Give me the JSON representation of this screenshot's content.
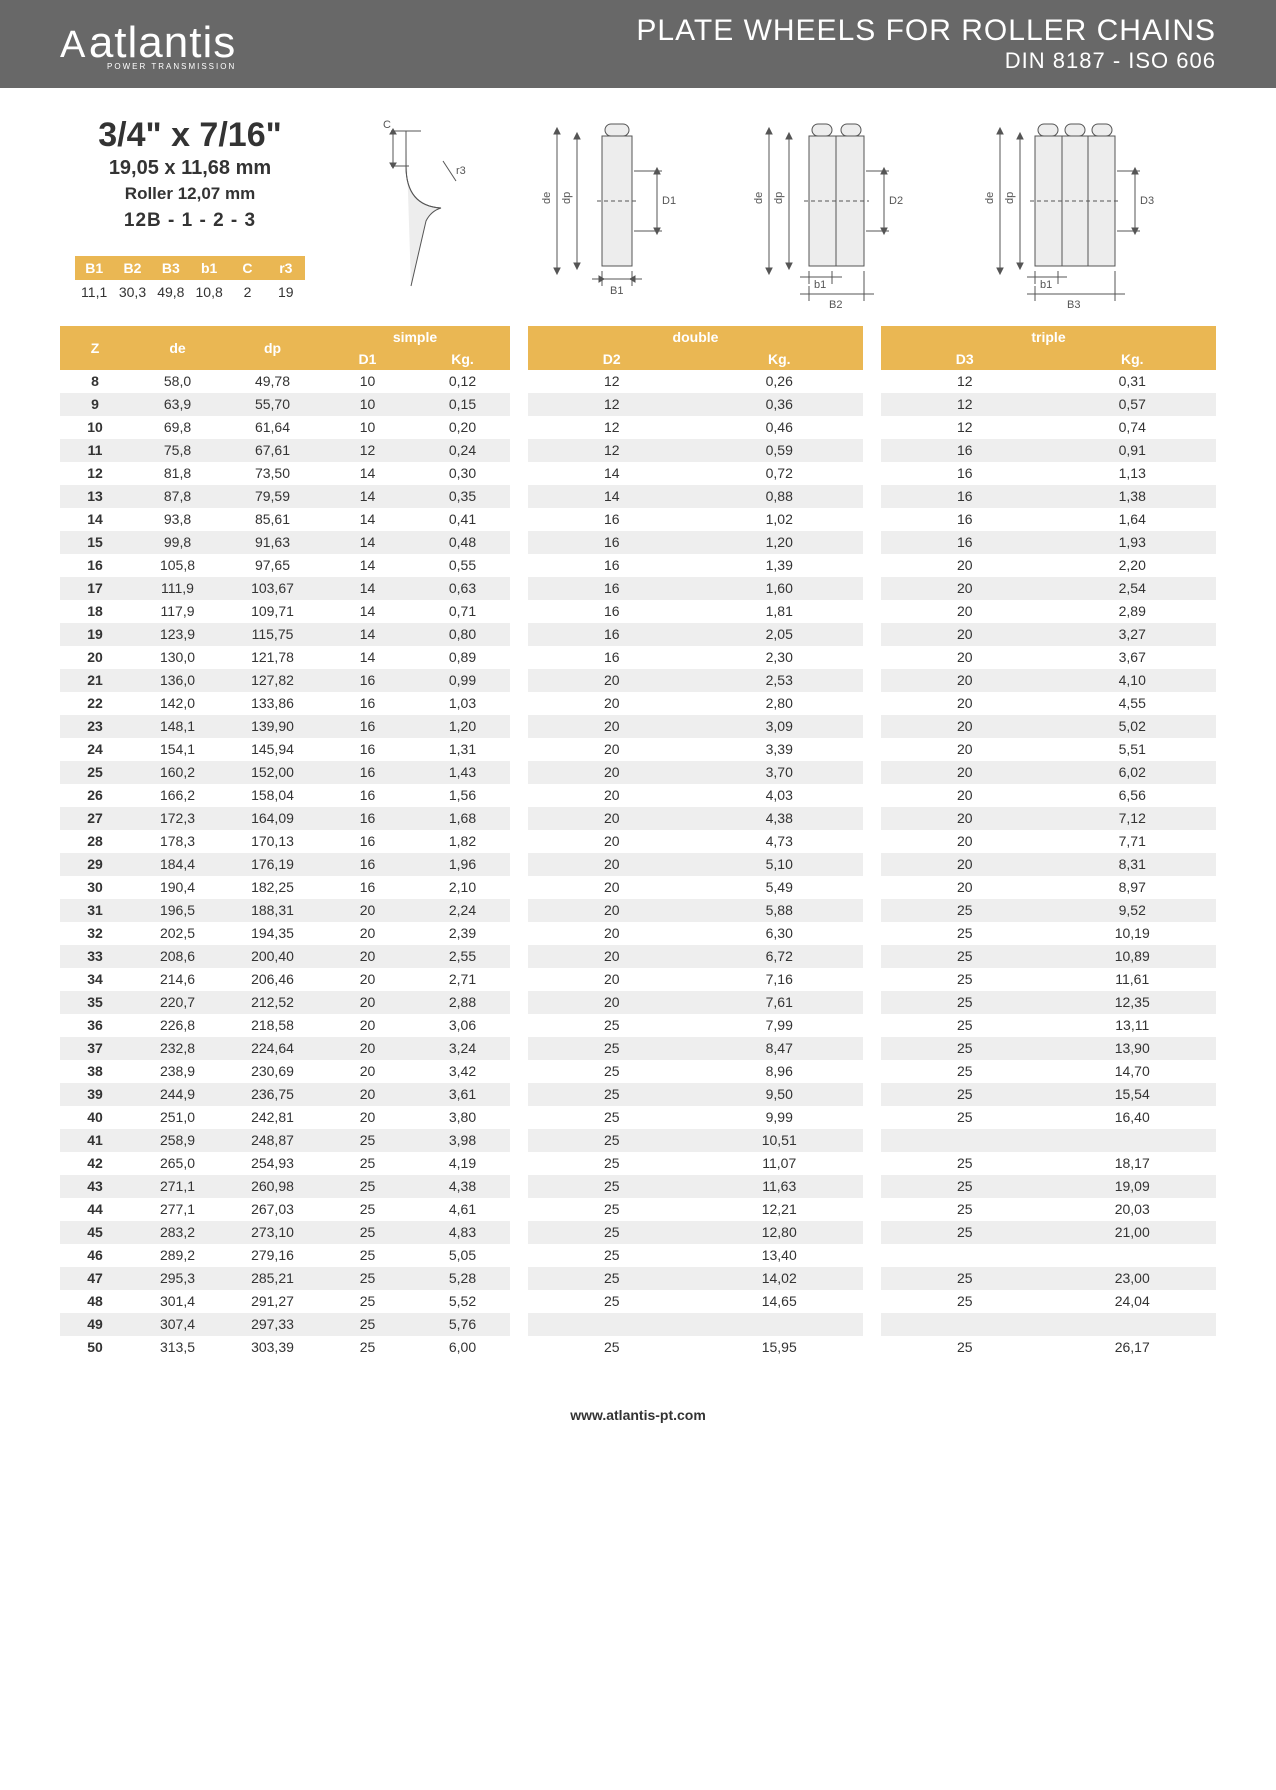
{
  "header": {
    "logo_mark": "A",
    "logo_name": "atlantis",
    "logo_sub": "POWER TRANSMISSION",
    "title_line1": "PLATE WHEELS FOR ROLLER CHAINS",
    "title_line2": "DIN 8187 - ISO 606"
  },
  "spec": {
    "size_inch": "3/4\" x 7/16\"",
    "size_mm": "19,05 x 11,68 mm",
    "roller": "Roller 12,07 mm",
    "code": "12B - 1 - 2 - 3"
  },
  "small_table": {
    "headers": [
      "B1",
      "B2",
      "B3",
      "b1",
      "C",
      "r3"
    ],
    "values": [
      "11,1",
      "30,3",
      "49,8",
      "10,8",
      "2",
      "19"
    ]
  },
  "diagram_labels": {
    "c": "C",
    "r3": "r3",
    "de": "de",
    "dp": "dp",
    "D1": "D1",
    "D2": "D2",
    "D3": "D3",
    "B1": "B1",
    "b1": "b1",
    "B2": "B2",
    "B3": "B3"
  },
  "table_head": {
    "z": "Z",
    "de": "de",
    "dp": "dp",
    "simple": "simple",
    "double": "double",
    "triple": "triple",
    "D1": "D1",
    "D2": "D2",
    "D3": "D3",
    "kg": "Kg."
  },
  "rows": [
    {
      "z": "8",
      "de": "58,0",
      "dp": "49,78",
      "d1": "10",
      "kg1": "0,12",
      "d2": "12",
      "kg2": "0,26",
      "d3": "12",
      "kg3": "0,31"
    },
    {
      "z": "9",
      "de": "63,9",
      "dp": "55,70",
      "d1": "10",
      "kg1": "0,15",
      "d2": "12",
      "kg2": "0,36",
      "d3": "12",
      "kg3": "0,57"
    },
    {
      "z": "10",
      "de": "69,8",
      "dp": "61,64",
      "d1": "10",
      "kg1": "0,20",
      "d2": "12",
      "kg2": "0,46",
      "d3": "12",
      "kg3": "0,74"
    },
    {
      "z": "11",
      "de": "75,8",
      "dp": "67,61",
      "d1": "12",
      "kg1": "0,24",
      "d2": "12",
      "kg2": "0,59",
      "d3": "16",
      "kg3": "0,91"
    },
    {
      "z": "12",
      "de": "81,8",
      "dp": "73,50",
      "d1": "14",
      "kg1": "0,30",
      "d2": "14",
      "kg2": "0,72",
      "d3": "16",
      "kg3": "1,13"
    },
    {
      "z": "13",
      "de": "87,8",
      "dp": "79,59",
      "d1": "14",
      "kg1": "0,35",
      "d2": "14",
      "kg2": "0,88",
      "d3": "16",
      "kg3": "1,38"
    },
    {
      "z": "14",
      "de": "93,8",
      "dp": "85,61",
      "d1": "14",
      "kg1": "0,41",
      "d2": "16",
      "kg2": "1,02",
      "d3": "16",
      "kg3": "1,64"
    },
    {
      "z": "15",
      "de": "99,8",
      "dp": "91,63",
      "d1": "14",
      "kg1": "0,48",
      "d2": "16",
      "kg2": "1,20",
      "d3": "16",
      "kg3": "1,93"
    },
    {
      "z": "16",
      "de": "105,8",
      "dp": "97,65",
      "d1": "14",
      "kg1": "0,55",
      "d2": "16",
      "kg2": "1,39",
      "d3": "20",
      "kg3": "2,20"
    },
    {
      "z": "17",
      "de": "111,9",
      "dp": "103,67",
      "d1": "14",
      "kg1": "0,63",
      "d2": "16",
      "kg2": "1,60",
      "d3": "20",
      "kg3": "2,54"
    },
    {
      "z": "18",
      "de": "117,9",
      "dp": "109,71",
      "d1": "14",
      "kg1": "0,71",
      "d2": "16",
      "kg2": "1,81",
      "d3": "20",
      "kg3": "2,89"
    },
    {
      "z": "19",
      "de": "123,9",
      "dp": "115,75",
      "d1": "14",
      "kg1": "0,80",
      "d2": "16",
      "kg2": "2,05",
      "d3": "20",
      "kg3": "3,27"
    },
    {
      "z": "20",
      "de": "130,0",
      "dp": "121,78",
      "d1": "14",
      "kg1": "0,89",
      "d2": "16",
      "kg2": "2,30",
      "d3": "20",
      "kg3": "3,67"
    },
    {
      "z": "21",
      "de": "136,0",
      "dp": "127,82",
      "d1": "16",
      "kg1": "0,99",
      "d2": "20",
      "kg2": "2,53",
      "d3": "20",
      "kg3": "4,10"
    },
    {
      "z": "22",
      "de": "142,0",
      "dp": "133,86",
      "d1": "16",
      "kg1": "1,03",
      "d2": "20",
      "kg2": "2,80",
      "d3": "20",
      "kg3": "4,55"
    },
    {
      "z": "23",
      "de": "148,1",
      "dp": "139,90",
      "d1": "16",
      "kg1": "1,20",
      "d2": "20",
      "kg2": "3,09",
      "d3": "20",
      "kg3": "5,02"
    },
    {
      "z": "24",
      "de": "154,1",
      "dp": "145,94",
      "d1": "16",
      "kg1": "1,31",
      "d2": "20",
      "kg2": "3,39",
      "d3": "20",
      "kg3": "5,51"
    },
    {
      "z": "25",
      "de": "160,2",
      "dp": "152,00",
      "d1": "16",
      "kg1": "1,43",
      "d2": "20",
      "kg2": "3,70",
      "d3": "20",
      "kg3": "6,02"
    },
    {
      "z": "26",
      "de": "166,2",
      "dp": "158,04",
      "d1": "16",
      "kg1": "1,56",
      "d2": "20",
      "kg2": "4,03",
      "d3": "20",
      "kg3": "6,56"
    },
    {
      "z": "27",
      "de": "172,3",
      "dp": "164,09",
      "d1": "16",
      "kg1": "1,68",
      "d2": "20",
      "kg2": "4,38",
      "d3": "20",
      "kg3": "7,12"
    },
    {
      "z": "28",
      "de": "178,3",
      "dp": "170,13",
      "d1": "16",
      "kg1": "1,82",
      "d2": "20",
      "kg2": "4,73",
      "d3": "20",
      "kg3": "7,71"
    },
    {
      "z": "29",
      "de": "184,4",
      "dp": "176,19",
      "d1": "16",
      "kg1": "1,96",
      "d2": "20",
      "kg2": "5,10",
      "d3": "20",
      "kg3": "8,31"
    },
    {
      "z": "30",
      "de": "190,4",
      "dp": "182,25",
      "d1": "16",
      "kg1": "2,10",
      "d2": "20",
      "kg2": "5,49",
      "d3": "20",
      "kg3": "8,97"
    },
    {
      "z": "31",
      "de": "196,5",
      "dp": "188,31",
      "d1": "20",
      "kg1": "2,24",
      "d2": "20",
      "kg2": "5,88",
      "d3": "25",
      "kg3": "9,52"
    },
    {
      "z": "32",
      "de": "202,5",
      "dp": "194,35",
      "d1": "20",
      "kg1": "2,39",
      "d2": "20",
      "kg2": "6,30",
      "d3": "25",
      "kg3": "10,19"
    },
    {
      "z": "33",
      "de": "208,6",
      "dp": "200,40",
      "d1": "20",
      "kg1": "2,55",
      "d2": "20",
      "kg2": "6,72",
      "d3": "25",
      "kg3": "10,89"
    },
    {
      "z": "34",
      "de": "214,6",
      "dp": "206,46",
      "d1": "20",
      "kg1": "2,71",
      "d2": "20",
      "kg2": "7,16",
      "d3": "25",
      "kg3": "11,61"
    },
    {
      "z": "35",
      "de": "220,7",
      "dp": "212,52",
      "d1": "20",
      "kg1": "2,88",
      "d2": "20",
      "kg2": "7,61",
      "d3": "25",
      "kg3": "12,35"
    },
    {
      "z": "36",
      "de": "226,8",
      "dp": "218,58",
      "d1": "20",
      "kg1": "3,06",
      "d2": "25",
      "kg2": "7,99",
      "d3": "25",
      "kg3": "13,11"
    },
    {
      "z": "37",
      "de": "232,8",
      "dp": "224,64",
      "d1": "20",
      "kg1": "3,24",
      "d2": "25",
      "kg2": "8,47",
      "d3": "25",
      "kg3": "13,90"
    },
    {
      "z": "38",
      "de": "238,9",
      "dp": "230,69",
      "d1": "20",
      "kg1": "3,42",
      "d2": "25",
      "kg2": "8,96",
      "d3": "25",
      "kg3": "14,70"
    },
    {
      "z": "39",
      "de": "244,9",
      "dp": "236,75",
      "d1": "20",
      "kg1": "3,61",
      "d2": "25",
      "kg2": "9,50",
      "d3": "25",
      "kg3": "15,54"
    },
    {
      "z": "40",
      "de": "251,0",
      "dp": "242,81",
      "d1": "20",
      "kg1": "3,80",
      "d2": "25",
      "kg2": "9,99",
      "d3": "25",
      "kg3": "16,40"
    },
    {
      "z": "41",
      "de": "258,9",
      "dp": "248,87",
      "d1": "25",
      "kg1": "3,98",
      "d2": "25",
      "kg2": "10,51",
      "d3": "",
      "kg3": ""
    },
    {
      "z": "42",
      "de": "265,0",
      "dp": "254,93",
      "d1": "25",
      "kg1": "4,19",
      "d2": "25",
      "kg2": "11,07",
      "d3": "25",
      "kg3": "18,17"
    },
    {
      "z": "43",
      "de": "271,1",
      "dp": "260,98",
      "d1": "25",
      "kg1": "4,38",
      "d2": "25",
      "kg2": "11,63",
      "d3": "25",
      "kg3": "19,09"
    },
    {
      "z": "44",
      "de": "277,1",
      "dp": "267,03",
      "d1": "25",
      "kg1": "4,61",
      "d2": "25",
      "kg2": "12,21",
      "d3": "25",
      "kg3": "20,03"
    },
    {
      "z": "45",
      "de": "283,2",
      "dp": "273,10",
      "d1": "25",
      "kg1": "4,83",
      "d2": "25",
      "kg2": "12,80",
      "d3": "25",
      "kg3": "21,00"
    },
    {
      "z": "46",
      "de": "289,2",
      "dp": "279,16",
      "d1": "25",
      "kg1": "5,05",
      "d2": "25",
      "kg2": "13,40",
      "d3": "",
      "kg3": ""
    },
    {
      "z": "47",
      "de": "295,3",
      "dp": "285,21",
      "d1": "25",
      "kg1": "5,28",
      "d2": "25",
      "kg2": "14,02",
      "d3": "25",
      "kg3": "23,00"
    },
    {
      "z": "48",
      "de": "301,4",
      "dp": "291,27",
      "d1": "25",
      "kg1": "5,52",
      "d2": "25",
      "kg2": "14,65",
      "d3": "25",
      "kg3": "24,04"
    },
    {
      "z": "49",
      "de": "307,4",
      "dp": "297,33",
      "d1": "25",
      "kg1": "5,76",
      "d2": "",
      "kg2": "",
      "d3": "",
      "kg3": ""
    },
    {
      "z": "50",
      "de": "313,5",
      "dp": "303,39",
      "d1": "25",
      "kg1": "6,00",
      "d2": "25",
      "kg2": "15,95",
      "d3": "25",
      "kg3": "26,17"
    }
  ],
  "footer": "www.atlantis-pt.com",
  "colors": {
    "header_bg": "#686868",
    "accent": "#eab753",
    "row_alt": "#eeeeee",
    "text": "#333333"
  }
}
